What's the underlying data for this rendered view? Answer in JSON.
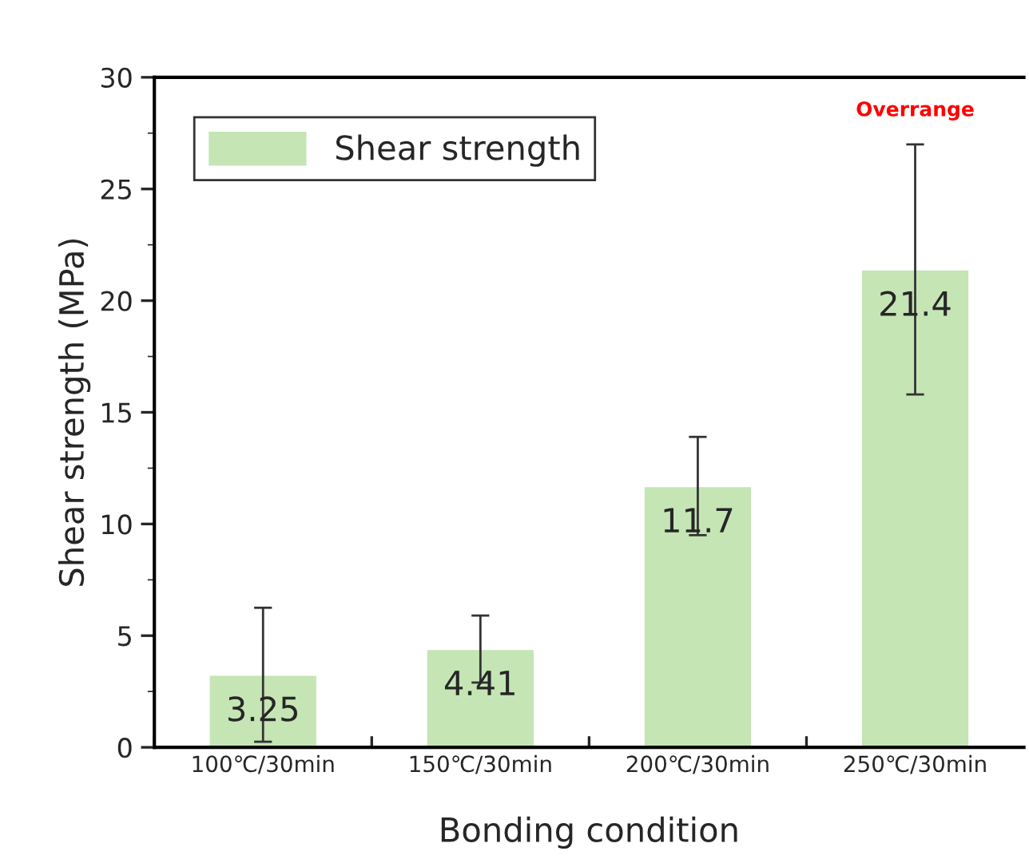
{
  "chart_data": {
    "type": "bar",
    "xlabel": "Bonding condition",
    "ylabel": "Shear strength (MPa)",
    "categories": [
      "100℃/30min",
      "150℃/30min",
      "200℃/30min",
      "250℃/30min"
    ],
    "series": [
      {
        "name": "Shear strength",
        "color": "#c5e5b5",
        "values": [
          3.25,
          4.41,
          11.7,
          21.4
        ],
        "errors": [
          [
            0.25,
            6.25
          ],
          [
            2.9,
            5.9
          ],
          [
            9.5,
            13.9
          ],
          [
            15.8,
            27.0
          ]
        ]
      }
    ],
    "data_labels": true,
    "ylim": [
      0,
      30
    ],
    "yticks": [
      0,
      5,
      10,
      15,
      20,
      25,
      30
    ],
    "annotations": [
      "Overrange"
    ],
    "legend": "top left",
    "grid": false
  }
}
